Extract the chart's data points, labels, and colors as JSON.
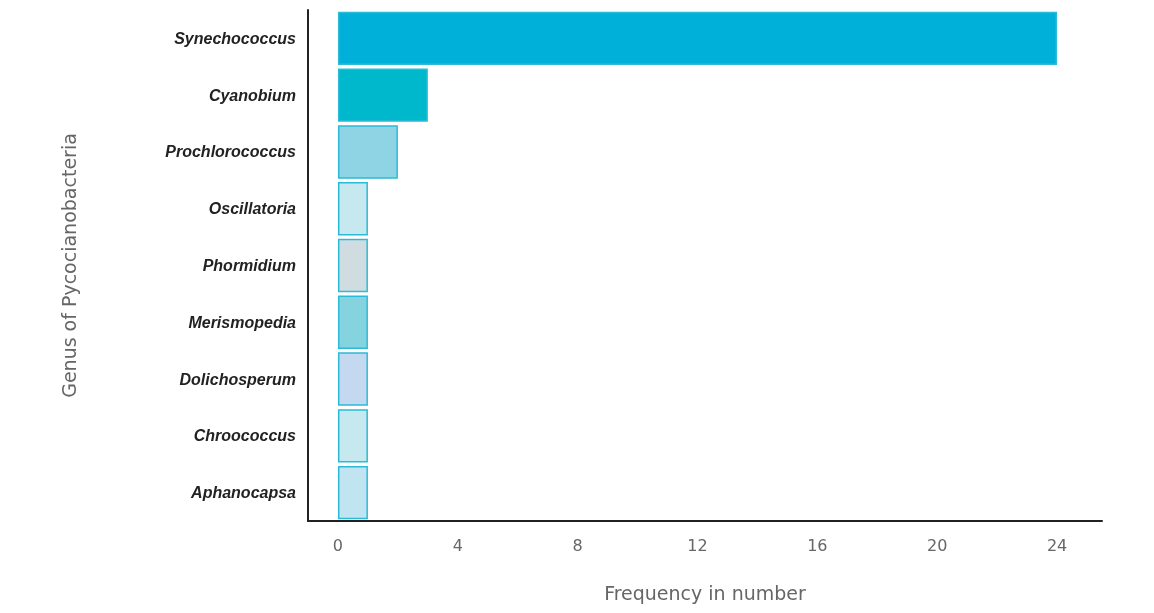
{
  "chart_data": {
    "type": "bar",
    "orientation": "horizontal",
    "xlabel": "Frequency in number",
    "ylabel": "Genus of Pycocianobacteria",
    "categories": [
      "Synechococcus",
      "Cyanobium",
      "Prochlorococcus",
      "Oscillatoria",
      "Phormidium",
      "Merismopedia",
      "Dolichosperum",
      "Chroococcus",
      "Aphanocapsa"
    ],
    "values": [
      24,
      3,
      2,
      1,
      1,
      1,
      1,
      1,
      1
    ],
    "colors": [
      "#00b0d8",
      "#00b8cc",
      "#8ed4e4",
      "#c6e8ef",
      "#d0dde0",
      "#86d3e0",
      "#c4d8f0",
      "#c6e8ef",
      "#c0e4f0"
    ],
    "xlim": [
      -1,
      25.5
    ],
    "xticks": [
      0,
      4,
      8,
      12,
      16,
      20,
      24
    ],
    "grid": false
  }
}
